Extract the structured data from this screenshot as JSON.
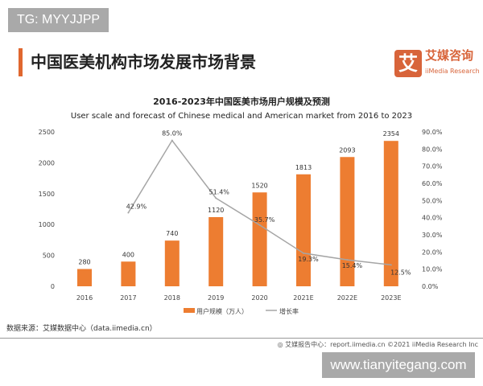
{
  "watermarks": {
    "top": "TG: MYYJJPP",
    "bottom": "www.tianyitegang.com"
  },
  "header": {
    "title": "中国医美机构市场发展市场背景",
    "logo_glyph": "艾",
    "logo_cn": "艾媒咨询",
    "logo_en": "iiMedia Research"
  },
  "footer": {
    "source": "数据来源：艾媒数据中心（data.iimedia.cn）",
    "credit": "艾媒报告中心：report.iimedia.cn   ©2021  iiMedia Research  Inc"
  },
  "colors": {
    "bar": "#ed7d31",
    "line": "#a5a5a5",
    "accent": "#e0672f"
  },
  "chart_data": {
    "type": "bar+line",
    "title": "2016-2023年中国医美市场用户规模及预测",
    "subtitle": "User scale and forecast of Chinese medical and American market from 2016 to 2023",
    "categories": [
      "2016",
      "2017",
      "2018",
      "2019",
      "2020",
      "2021E",
      "2022E",
      "2023E"
    ],
    "series": [
      {
        "name": "用户规模（万人）",
        "type": "bar",
        "axis": "left",
        "values": [
          280,
          400,
          740,
          1120,
          1520,
          1813,
          2093,
          2354
        ]
      },
      {
        "name": "增长率",
        "type": "line",
        "axis": "right",
        "values": [
          null,
          42.9,
          85.0,
          51.4,
          35.7,
          19.3,
          15.4,
          12.5
        ]
      }
    ],
    "yleft": {
      "ticks": [
        "0",
        "500",
        "1000",
        "1500",
        "2000",
        "2500"
      ],
      "range": [
        0,
        2500
      ]
    },
    "yright": {
      "ticks": [
        "0.0%",
        "10.0%",
        "20.0%",
        "30.0%",
        "40.0%",
        "50.0%",
        "60.0%",
        "70.0%",
        "80.0%",
        "90.0%"
      ],
      "range": [
        0,
        90
      ]
    },
    "line_labels": [
      "",
      "42.9%",
      "85.0%",
      "51.4%",
      "35.7%",
      "19.3%",
      "15.4%",
      "12.5%"
    ],
    "grid": false,
    "legend": "bottom"
  }
}
